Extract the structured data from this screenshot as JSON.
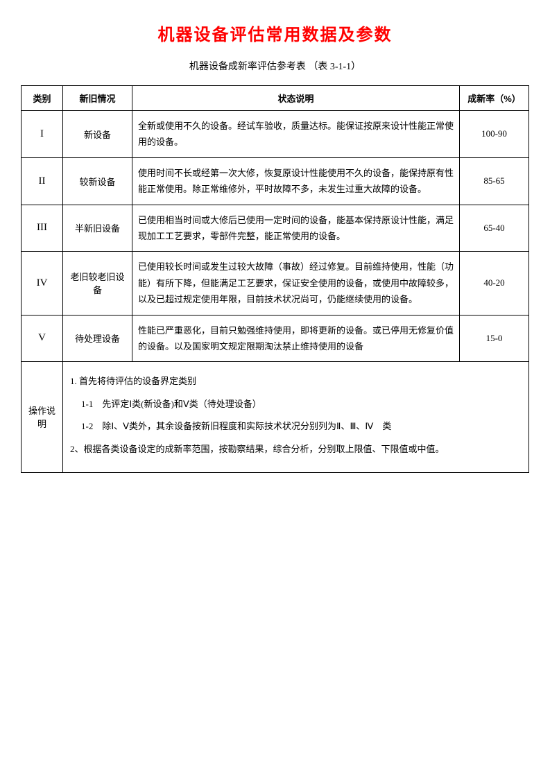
{
  "title": "机器设备评估常用数据及参数",
  "subtitle": "机器设备成新率评估参考表 （表 3-1-1）",
  "headers": {
    "category": "类别",
    "condition": "新旧情况",
    "description": "状态说明",
    "rate": "成新率（%）"
  },
  "rows": [
    {
      "cat": "I",
      "cond": "新设备",
      "desc": "全新或使用不久的设备。经试车验收，质量达标。能保证按原来设计性能正常使用的设备。",
      "rate": "100-90"
    },
    {
      "cat": "II",
      "cond": "较新设备",
      "desc": "使用时间不长或经第一次大修，恢复原设计性能使用不久的设备，能保持原有性能正常使用。除正常维修外，平时故障不多，未发生过重大故障的设备。",
      "rate": "85-65"
    },
    {
      "cat": "III",
      "cond": "半新旧设备",
      "desc": "已使用相当时间或大修后已使用一定时间的设备，能基本保持原设计性能，满足现加工工艺要求，零部件完整，能正常使用的设备。",
      "rate": "65-40"
    },
    {
      "cat": "IV",
      "cond": "老旧较老旧设备",
      "desc": "已使用较长时间或发生过较大故障（事故）经过修复。目前维持使用，性能（功能）有所下降，但能满足工艺要求，保证安全使用的设备，或使用中故障较多，以及已超过规定使用年限，目前技术状况尚可，仍能继续使用的设备。",
      "rate": "40-20"
    },
    {
      "cat": "V",
      "cond": "待处理设备",
      "desc": "性能已严重恶化，目前只勉强维持使用，即将更新的设备。或已停用无修复价值的设备。以及国家明文规定限期淘汰禁止维持使用的设备",
      "rate": "15-0"
    }
  ],
  "notes": {
    "label": "操作说明",
    "lines": [
      "1. 首先将待评估的设备界定类别",
      "1-1　先评定Ⅰ类(新设备)和Ⅴ类（待处理设备）",
      "1-2　除Ⅰ、Ⅴ类外，其余设备按新旧程度和实际技术状况分别列为Ⅱ、Ⅲ、Ⅳ　类",
      "2、根据各类设备设定的成新率范围，按勘察结果，综合分析，分别取上限值、下限值或中值。"
    ]
  }
}
